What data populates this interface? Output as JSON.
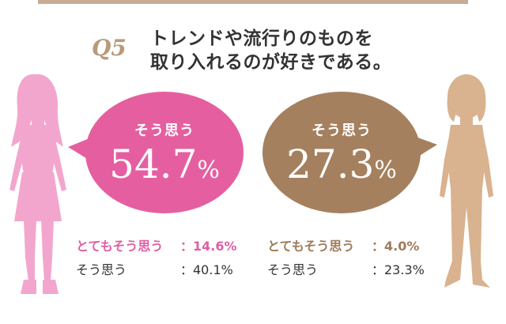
{
  "header": {
    "question_number": "Q5",
    "question_lines": [
      "トレンドや流行りのものを",
      "取り入れるのが好きである。"
    ]
  },
  "colors": {
    "women": "#e55fa0",
    "men": "#a5805f",
    "women_silhouette": "#f3a6cd",
    "men_silhouette": "#d9b28f",
    "top_bar": "#c6ad94"
  },
  "icons": {
    "left": "woman-silhouette-icon",
    "right": "man-silhouette-icon"
  },
  "chart_data": [
    {
      "type": "table",
      "group_color": "#e55fa0",
      "headline_label": "そう思う",
      "headline_value": "54.7",
      "headline_unit": "%",
      "rows": [
        {
          "label": "とてもそう思う",
          "value": "：14.6%"
        },
        {
          "label": "そう思う",
          "value": "：40.1%"
        }
      ]
    },
    {
      "type": "table",
      "group_color": "#a5805f",
      "headline_label": "そう思う",
      "headline_value": "27.3",
      "headline_unit": "%",
      "rows": [
        {
          "label": "とてもそう思う",
          "value": "：4.0%"
        },
        {
          "label": "そう思う",
          "value": "：23.3%"
        }
      ]
    }
  ]
}
